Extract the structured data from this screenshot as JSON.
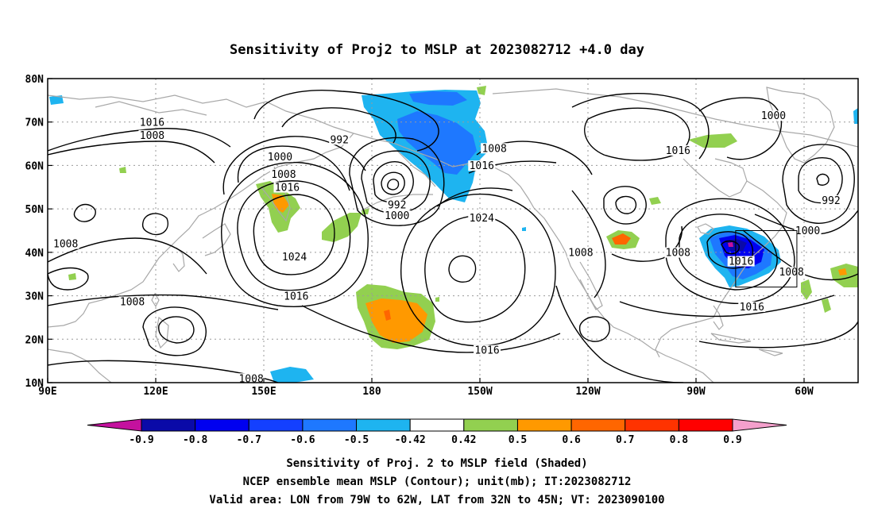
{
  "title": "Sensitivity of Proj2 to MSLP at 2023082712 +4.0 day",
  "map": {
    "lon_ticks": [
      {
        "lon": 90,
        "label": "90E"
      },
      {
        "lon": 120,
        "label": "120E"
      },
      {
        "lon": 150,
        "label": "150E"
      },
      {
        "lon": 180,
        "label": "180"
      },
      {
        "lon": 210,
        "label": "150W"
      },
      {
        "lon": 240,
        "label": "120W"
      },
      {
        "lon": 270,
        "label": "90W"
      },
      {
        "lon": 300,
        "label": "60W"
      }
    ],
    "lat_ticks": [
      {
        "lat": 80,
        "label": "80N"
      },
      {
        "lat": 70,
        "label": "70N"
      },
      {
        "lat": 60,
        "label": "60N"
      },
      {
        "lat": 50,
        "label": "50N"
      },
      {
        "lat": 40,
        "label": "40N"
      },
      {
        "lat": 30,
        "label": "30N"
      },
      {
        "lat": 20,
        "label": "20N"
      },
      {
        "lat": 10,
        "label": "10N"
      }
    ],
    "lon_range": [
      90,
      315
    ],
    "lat_range": [
      10,
      80
    ],
    "grid": "dotted",
    "valid_box": {
      "lon": [
        281,
        298
      ],
      "lat": [
        32,
        45
      ]
    }
  },
  "contour_labels": [
    {
      "text": "1016",
      "lon": 119,
      "lat": 69.5
    },
    {
      "text": "1008",
      "lon": 119,
      "lat": 66.5
    },
    {
      "text": "1008",
      "lon": 95,
      "lat": 41.5
    },
    {
      "text": "1008",
      "lon": 113.5,
      "lat": 28.2
    },
    {
      "text": "1008",
      "lon": 146.5,
      "lat": 10.5
    },
    {
      "text": "992",
      "lon": 171,
      "lat": 65.5
    },
    {
      "text": "1000",
      "lon": 154.5,
      "lat": 61.5
    },
    {
      "text": "1008",
      "lon": 155.5,
      "lat": 57.5
    },
    {
      "text": "1016",
      "lon": 156.5,
      "lat": 54.5
    },
    {
      "text": "992",
      "lon": 187,
      "lat": 50.5
    },
    {
      "text": "1000",
      "lon": 187,
      "lat": 48.0
    },
    {
      "text": "1024",
      "lon": 158.5,
      "lat": 38.5
    },
    {
      "text": "1016",
      "lon": 159,
      "lat": 29.5
    },
    {
      "text": "1008",
      "lon": 214,
      "lat": 63.5
    },
    {
      "text": "1016",
      "lon": 210.5,
      "lat": 59.5
    },
    {
      "text": "1024",
      "lon": 210.5,
      "lat": 47.5
    },
    {
      "text": "1008",
      "lon": 238,
      "lat": 39.5
    },
    {
      "text": "1016",
      "lon": 212,
      "lat": 17.0
    },
    {
      "text": "1016",
      "lon": 265,
      "lat": 63.0
    },
    {
      "text": "1008",
      "lon": 265,
      "lat": 39.5
    },
    {
      "text": "1000",
      "lon": 291.5,
      "lat": 71.0
    },
    {
      "text": "992",
      "lon": 307.5,
      "lat": 51.5
    },
    {
      "text": "1000",
      "lon": 301,
      "lat": 44.5
    },
    {
      "text": "1016",
      "lon": 282.5,
      "lat": 37.5
    },
    {
      "text": "1008",
      "lon": 296.5,
      "lat": 35.0
    },
    {
      "text": "1016",
      "lon": 285.5,
      "lat": 27.0
    }
  ],
  "colorbar": {
    "labels": [
      "-0.9",
      "-0.8",
      "-0.7",
      "-0.6",
      "-0.5",
      "-0.42",
      "0.42",
      "0.5",
      "0.6",
      "0.7",
      "0.8",
      "0.9"
    ],
    "colors": {
      "low_arrow": "#c4119e",
      "bins": [
        "#0a0aa8",
        "#0000f0",
        "#1440ff",
        "#1e78ff",
        "#1eb4f0",
        "#ffffff",
        "#92d050",
        "#ff9900",
        "#ff6600",
        "#ff3300",
        "#ff0000"
      ],
      "high_arrow": "#f4a0cc"
    }
  },
  "captions": [
    "Sensitivity of Proj. 2 to MSLP field (Shaded)",
    "NCEP ensemble mean MSLP (Contour); unit(mb); IT:2023082712",
    "Valid area: LON from 79W to 62W, LAT from 32N to 45N; VT: 2023090100"
  ],
  "colors": {
    "coastline": "#a8a8a8",
    "contour": "#000000",
    "grid": "#9a9a9a",
    "blue_light": "#1eb4f0",
    "blue_mid": "#1e78ff",
    "blue_dark": "#0000f0",
    "green": "#92d050",
    "orange": "#ff9900",
    "orange_dark": "#ff6600",
    "red": "#ff0000"
  }
}
